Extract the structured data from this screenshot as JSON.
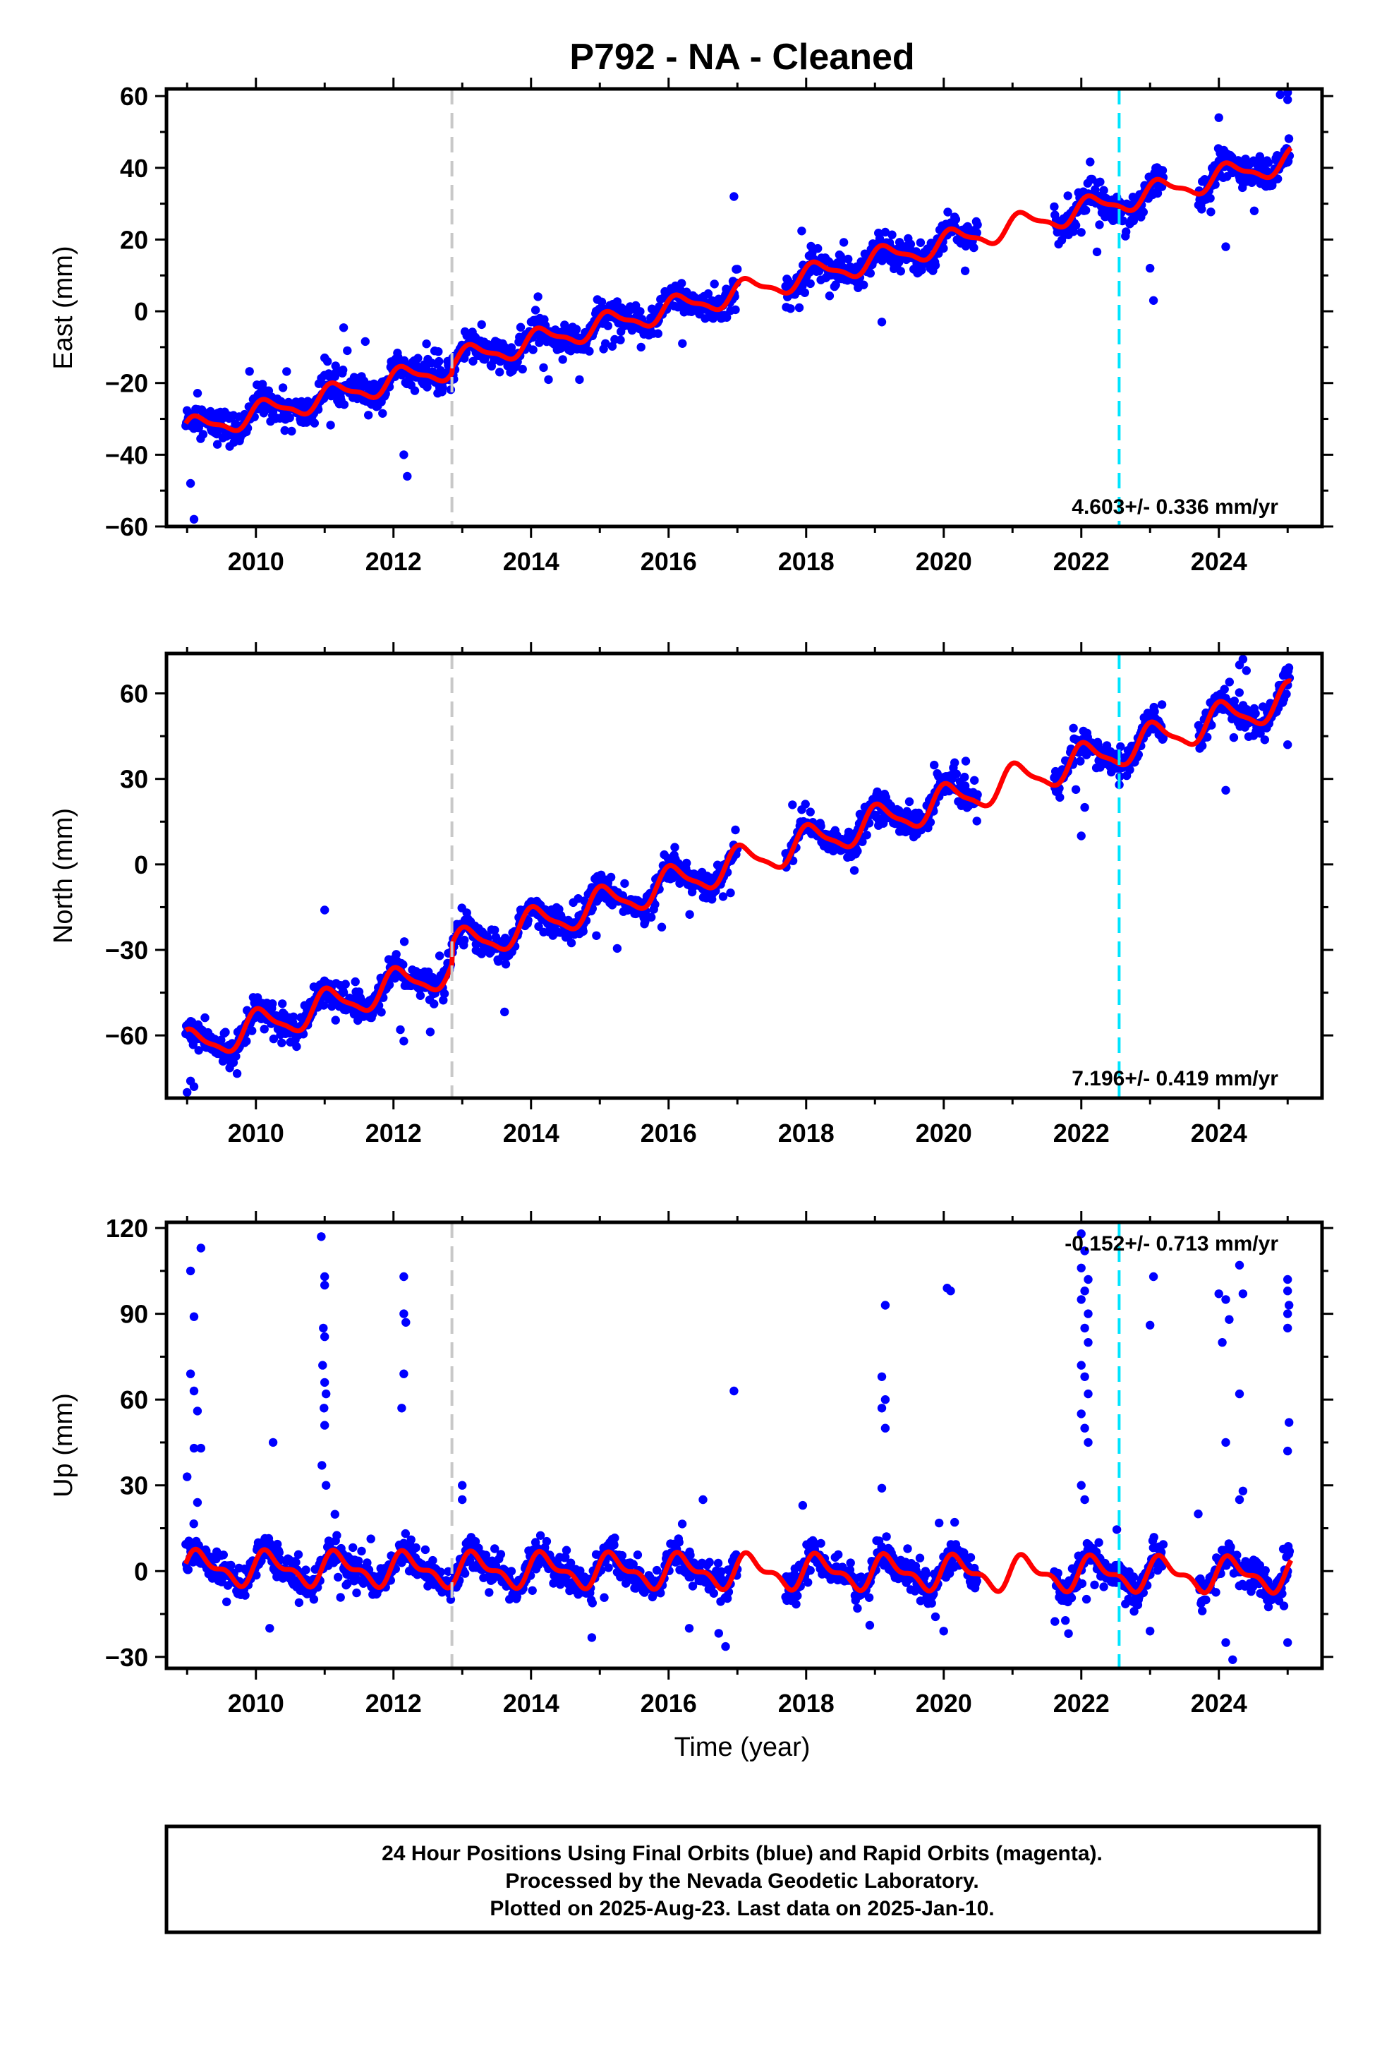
{
  "title": "P792  - NA - Cleaned",
  "footer": {
    "lines": [
      "24 Hour Positions Using Final Orbits (blue) and Rapid Orbits (magenta).",
      "Processed by the Nevada Geodetic Laboratory.",
      "Plotted on 2025-Aug-23. Last data on 2025-Jan-10."
    ]
  },
  "colors": {
    "data_points": "#0000ff",
    "model_fit": "#ff0000",
    "equipment_change": "#c8c8c8",
    "event_line": "#00e5ff"
  },
  "chart_data": [
    {
      "type": "scatter",
      "ylabel": "East (mm)",
      "xlim": [
        2008.7,
        2025.5
      ],
      "ylim": [
        -60,
        62
      ],
      "xticks": [
        2010,
        2012,
        2014,
        2016,
        2018,
        2020,
        2022,
        2024
      ],
      "yticks": [
        -60,
        -40,
        -20,
        0,
        20,
        40,
        60
      ],
      "grid": false,
      "rate_label": "4.603+/- 0.336 mm/yr",
      "vlines": [
        {
          "x": 2012.85,
          "kind": "equipment_change"
        },
        {
          "x": 2022.55,
          "kind": "event_line"
        }
      ],
      "trend": {
        "rate": 4.603,
        "value_at_2016": 0.5,
        "offsets": [
          {
            "x": 2012.85,
            "delta": 1.5
          }
        ],
        "annual_amp": 3.0,
        "semiannual_amp": 1.0,
        "phase": 0.6
      },
      "scatter": 4.0,
      "gaps": [
        [
          2017.0,
          2017.7
        ],
        [
          2020.5,
          2021.6
        ],
        [
          2023.2,
          2023.7
        ]
      ],
      "outliers": [
        [
          2009.1,
          -58
        ],
        [
          2009.05,
          -48
        ],
        [
          2011.0,
          -13
        ],
        [
          2012.2,
          -46
        ],
        [
          2012.15,
          -40
        ],
        [
          2015.6,
          -10
        ],
        [
          2016.2,
          -9
        ],
        [
          2016.95,
          32
        ],
        [
          2017.9,
          1
        ],
        [
          2019.1,
          -3
        ],
        [
          2022.0,
          22
        ],
        [
          2023.0,
          12
        ],
        [
          2023.05,
          3
        ],
        [
          2024.0,
          54
        ],
        [
          2024.1,
          18
        ],
        [
          2024.7,
          42
        ],
        [
          2025.0,
          61
        ],
        [
          2025.0,
          59
        ],
        [
          2015.3,
          -8
        ],
        [
          2013.7,
          -17
        ]
      ]
    },
    {
      "type": "scatter",
      "ylabel": "North (mm)",
      "xlim": [
        2008.7,
        2025.5
      ],
      "ylim": [
        -82,
        74
      ],
      "xticks": [
        2010,
        2012,
        2014,
        2016,
        2018,
        2020,
        2022,
        2024
      ],
      "yticks": [
        -60,
        -30,
        0,
        30,
        60
      ],
      "grid": false,
      "rate_label": "7.196+/- 0.419 mm/yr",
      "vlines": [
        {
          "x": 2012.85,
          "kind": "equipment_change"
        },
        {
          "x": 2022.55,
          "kind": "event_line"
        }
      ],
      "trend": {
        "rate": 7.196,
        "value_at_2016": -7,
        "offsets": [
          {
            "x": 2012.85,
            "delta": 7.0
          }
        ],
        "annual_amp": 5.5,
        "semiannual_amp": 1.5,
        "phase": 1.2
      },
      "scatter": 4.5,
      "gaps": [
        [
          2017.0,
          2017.7
        ],
        [
          2020.5,
          2021.6
        ],
        [
          2023.2,
          2023.7
        ]
      ],
      "outliers": [
        [
          2009.0,
          -80
        ],
        [
          2009.1,
          -78
        ],
        [
          2009.05,
          -76
        ],
        [
          2011.0,
          -16
        ],
        [
          2012.15,
          -62
        ],
        [
          2012.1,
          -58
        ],
        [
          2014.95,
          -25
        ],
        [
          2015.9,
          -22
        ],
        [
          2016.9,
          -10
        ],
        [
          2022.0,
          10
        ],
        [
          2022.05,
          20
        ],
        [
          2024.1,
          26
        ],
        [
          2024.3,
          70
        ],
        [
          2024.4,
          68
        ],
        [
          2024.35,
          72
        ],
        [
          2025.0,
          42
        ],
        [
          2013.2,
          -28
        ],
        [
          2019.5,
          22
        ]
      ]
    },
    {
      "type": "scatter",
      "ylabel": "Up (mm)",
      "xlabel": "Time (year)",
      "xlim": [
        2008.7,
        2025.5
      ],
      "ylim": [
        -34,
        122
      ],
      "xticks": [
        2010,
        2012,
        2014,
        2016,
        2018,
        2020,
        2022,
        2024
      ],
      "yticks": [
        -30,
        0,
        30,
        60,
        90,
        120
      ],
      "grid": false,
      "rate_label": "-0.152+/- 0.713 mm/yr",
      "vlines": [
        {
          "x": 2012.85,
          "kind": "equipment_change"
        },
        {
          "x": 2022.55,
          "kind": "event_line"
        }
      ],
      "trend": {
        "rate": -0.152,
        "value_at_2016": 0,
        "offsets": [],
        "annual_amp": 5.0,
        "semiannual_amp": 2.5,
        "phase": 0.3
      },
      "scatter": 5.0,
      "gaps": [
        [
          2017.0,
          2017.7
        ],
        [
          2020.5,
          2021.6
        ],
        [
          2023.2,
          2023.7
        ]
      ],
      "outliers": [
        [
          2009.05,
          105
        ],
        [
          2009.2,
          113
        ],
        [
          2009.1,
          89
        ],
        [
          2009.05,
          69
        ],
        [
          2009.1,
          63
        ],
        [
          2009.15,
          56
        ],
        [
          2009.1,
          43
        ],
        [
          2009.2,
          43
        ],
        [
          2009.0,
          33
        ],
        [
          2009.15,
          24
        ],
        [
          2010.25,
          45
        ],
        [
          2010.95,
          117
        ],
        [
          2011.0,
          103
        ],
        [
          2011.0,
          100
        ],
        [
          2010.98,
          85
        ],
        [
          2011.0,
          82
        ],
        [
          2010.97,
          72
        ],
        [
          2011.0,
          66
        ],
        [
          2011.02,
          62
        ],
        [
          2010.99,
          57
        ],
        [
          2011.0,
          51
        ],
        [
          2010.96,
          37
        ],
        [
          2011.02,
          30
        ],
        [
          2012.15,
          103
        ],
        [
          2012.15,
          90
        ],
        [
          2012.18,
          87
        ],
        [
          2012.15,
          69
        ],
        [
          2012.12,
          57
        ],
        [
          2013.0,
          30
        ],
        [
          2013.0,
          25
        ],
        [
          2016.5,
          25
        ],
        [
          2016.95,
          63
        ],
        [
          2017.95,
          23
        ],
        [
          2019.15,
          93
        ],
        [
          2019.1,
          68
        ],
        [
          2019.15,
          60
        ],
        [
          2019.1,
          57
        ],
        [
          2019.15,
          50
        ],
        [
          2019.1,
          29
        ],
        [
          2020.05,
          99
        ],
        [
          2020.1,
          98
        ],
        [
          2022.0,
          118
        ],
        [
          2022.05,
          112
        ],
        [
          2022.0,
          106
        ],
        [
          2022.1,
          102
        ],
        [
          2022.05,
          98
        ],
        [
          2022.0,
          95
        ],
        [
          2022.1,
          90
        ],
        [
          2022.05,
          85
        ],
        [
          2022.1,
          80
        ],
        [
          2022.0,
          72
        ],
        [
          2022.05,
          68
        ],
        [
          2022.1,
          62
        ],
        [
          2022.0,
          55
        ],
        [
          2022.05,
          50
        ],
        [
          2022.1,
          45
        ],
        [
          2022.0,
          30
        ],
        [
          2022.05,
          25
        ],
        [
          2023.05,
          103
        ],
        [
          2023.0,
          86
        ],
        [
          2023.7,
          20
        ],
        [
          2024.0,
          97
        ],
        [
          2024.05,
          80
        ],
        [
          2024.1,
          95
        ],
        [
          2024.15,
          88
        ],
        [
          2024.1,
          45
        ],
        [
          2024.3,
          107
        ],
        [
          2024.35,
          97
        ],
        [
          2024.3,
          62
        ],
        [
          2024.35,
          28
        ],
        [
          2024.3,
          25
        ],
        [
          2025.0,
          102
        ],
        [
          2025.0,
          98
        ],
        [
          2025.02,
          93
        ],
        [
          2025.0,
          90
        ],
        [
          2025.0,
          85
        ],
        [
          2025.02,
          52
        ],
        [
          2025.0,
          42
        ],
        [
          2023.0,
          -21
        ],
        [
          2024.2,
          -31
        ],
        [
          2024.1,
          -25
        ],
        [
          2025.0,
          -25
        ],
        [
          2016.3,
          -20
        ],
        [
          2010.2,
          -20
        ],
        [
          2020.0,
          -21
        ]
      ]
    }
  ]
}
